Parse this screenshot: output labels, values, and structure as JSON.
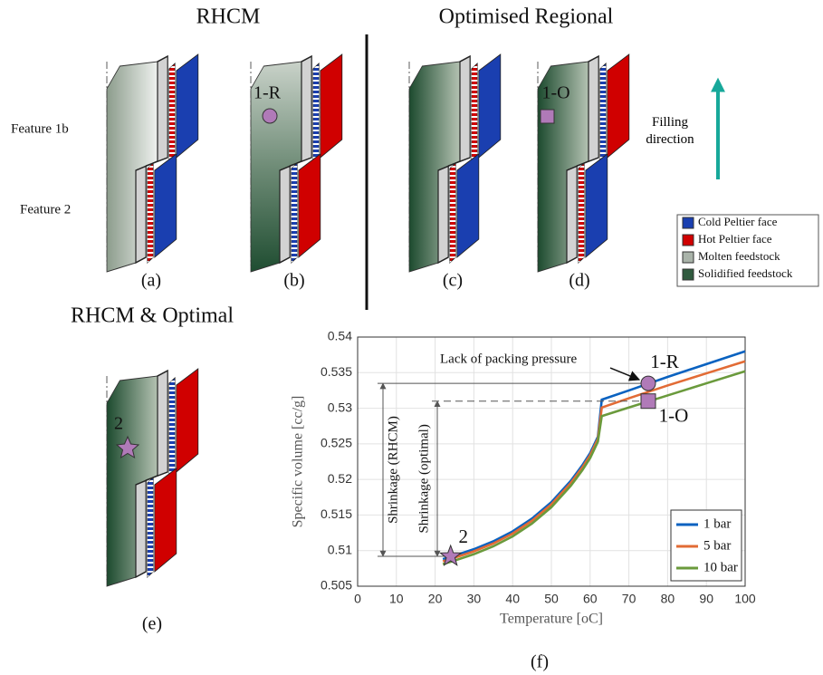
{
  "headings": {
    "rhcm": "RHCM",
    "optimised": "Optimised Regional",
    "combined": "RHCM & Optimal"
  },
  "features": [
    "Feature 1b",
    "Feature 2"
  ],
  "panel_labels": [
    "(a)",
    "(b)",
    "(c)",
    "(d)",
    "(e)",
    "(f)"
  ],
  "point_labels": {
    "b": "1-R",
    "d": "1-O",
    "e": "2"
  },
  "filling_direction": "Filling direction",
  "legend": [
    {
      "label": "Cold Peltier face",
      "color": "#1a3fb0"
    },
    {
      "label": "Hot Peltier face",
      "color": "#d00000"
    },
    {
      "label": "Molten feedstock",
      "color": "#a9b3a9"
    },
    {
      "label": "Solidified feedstock",
      "color": "#2f5a3e"
    }
  ],
  "chart_data": {
    "type": "line",
    "xlabel": "Temperature [oC]",
    "ylabel": "Specific volume [cc/g]",
    "x": [
      22,
      25,
      30,
      35,
      40,
      45,
      50,
      55,
      58,
      60,
      62,
      63,
      70,
      80,
      90,
      100
    ],
    "series": [
      {
        "name": "1 bar",
        "color": "#0a62c0",
        "values": [
          0.5088,
          0.5093,
          0.5102,
          0.5113,
          0.5127,
          0.5145,
          0.5168,
          0.5198,
          0.522,
          0.5237,
          0.526,
          0.5312,
          0.5325,
          0.5344,
          0.5362,
          0.538
        ]
      },
      {
        "name": "5 bar",
        "color": "#e26b35",
        "values": [
          0.5085,
          0.509,
          0.5099,
          0.511,
          0.5124,
          0.5142,
          0.5165,
          0.5195,
          0.5217,
          0.5234,
          0.5257,
          0.5301,
          0.5314,
          0.5332,
          0.5349,
          0.5366
        ]
      },
      {
        "name": "10 bar",
        "color": "#6a9a3c",
        "values": [
          0.5081,
          0.5086,
          0.5095,
          0.5106,
          0.512,
          0.5138,
          0.5161,
          0.5191,
          0.5213,
          0.523,
          0.5253,
          0.5289,
          0.5301,
          0.5318,
          0.5335,
          0.5352
        ]
      }
    ],
    "xlim": [
      0,
      100
    ],
    "xticks": [
      0,
      10,
      20,
      30,
      40,
      50,
      60,
      70,
      80,
      90,
      100
    ],
    "ylim": [
      0.505,
      0.54
    ],
    "yticks": [
      0.505,
      0.51,
      0.515,
      0.52,
      0.525,
      0.53,
      0.535,
      0.54
    ],
    "grid": true,
    "legend": "lower right",
    "points": [
      {
        "label": "1-R",
        "x": 75,
        "y": 0.5335,
        "marker": "circle"
      },
      {
        "label": "1-O",
        "x": 75,
        "y": 0.531,
        "marker": "square"
      },
      {
        "label": "2",
        "x": 24,
        "y": 0.5092,
        "marker": "star"
      }
    ],
    "annotations": {
      "packing": "Lack of packing pressure",
      "shrinkage_rhcm": "Shrinkage (RHCM)",
      "shrinkage_optimal": "Shrinkage (optimal)"
    }
  }
}
